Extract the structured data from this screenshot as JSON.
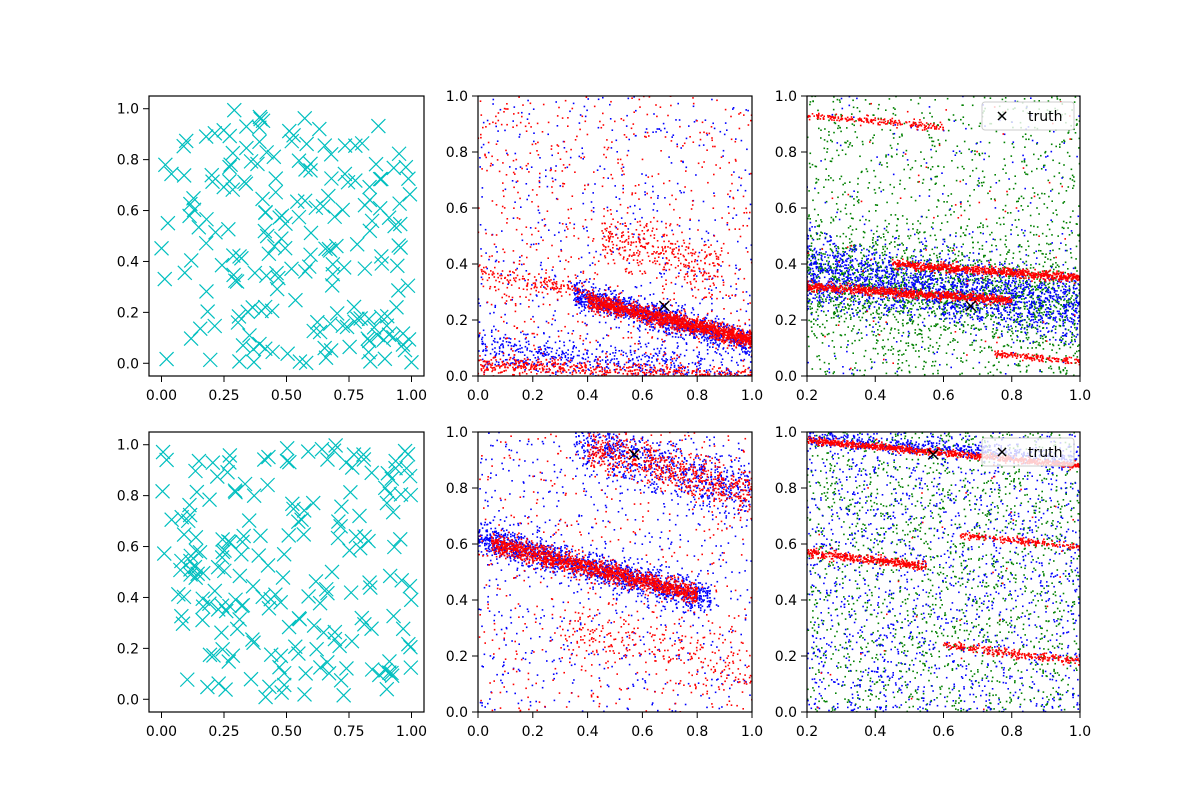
{
  "chart_data": [
    {
      "id": "top-left",
      "type": "scatter",
      "xlim": [
        -0.05,
        1.05
      ],
      "ylim": [
        -0.05,
        1.05
      ],
      "xticks": [
        "0.00",
        "0.25",
        "0.50",
        "0.75",
        "1.00"
      ],
      "yticks": [
        "0.0",
        "0.2",
        "0.4",
        "0.6",
        "0.8",
        "1.0"
      ],
      "grid": false,
      "series": [
        {
          "marker": "x-large",
          "color": "#00bfbf",
          "count": 200,
          "distribution": "uniform over [0,1]x[0,1]"
        }
      ]
    },
    {
      "id": "top-middle",
      "type": "scatter",
      "xlim": [
        0,
        1
      ],
      "ylim": [
        0,
        1
      ],
      "xticks": [
        "0.0",
        "0.2",
        "0.4",
        "0.6",
        "0.8",
        "1.0"
      ],
      "yticks": [
        "0.0",
        "0.2",
        "0.4",
        "0.6",
        "0.8",
        "1.0"
      ],
      "grid": false,
      "truth": {
        "x": 0.68,
        "y": 0.25,
        "color": "#000000",
        "marker": "x"
      },
      "series": [
        {
          "color": "#0000ff",
          "bands": [
            {
              "x": [
                0.35,
                1.0
              ],
              "y": [
                0.29,
                0.12
              ],
              "spread": 0.025,
              "count": 1200
            },
            {
              "x": [
                0.0,
                1.0
              ],
              "y": [
                0.1,
                0.0
              ],
              "spread": 0.04,
              "count": 600
            }
          ],
          "background": 500
        },
        {
          "color": "#ff0000",
          "bands": [
            {
              "x": [
                0.4,
                1.0
              ],
              "y": [
                0.27,
                0.13
              ],
              "spread": 0.015,
              "count": 1500
            },
            {
              "x": [
                0.0,
                1.0
              ],
              "y": [
                0.04,
                0.0
              ],
              "spread": 0.015,
              "count": 500
            },
            {
              "x": [
                0.45,
                0.9
              ],
              "y": [
                0.5,
                0.38
              ],
              "spread": 0.04,
              "count": 300
            },
            {
              "x": [
                0.0,
                0.4
              ],
              "y": [
                0.37,
                0.3
              ],
              "spread": 0.02,
              "count": 150
            }
          ],
          "background": 700
        }
      ]
    },
    {
      "id": "top-right",
      "type": "scatter",
      "xlim": [
        0.2,
        1.0
      ],
      "ylim": [
        0,
        1
      ],
      "xticks": [
        "0.2",
        "0.4",
        "0.6",
        "0.8",
        "1.0"
      ],
      "yticks": [
        "0.0",
        "0.2",
        "0.4",
        "0.6",
        "0.8",
        "1.0"
      ],
      "grid": false,
      "legend": {
        "label": "truth",
        "location": "upper right"
      },
      "truth": {
        "x": 0.68,
        "y": 0.25,
        "color": "#000000",
        "marker": "x"
      },
      "series": [
        {
          "color": "#008000",
          "bands": [
            {
              "x": [
                0.2,
                1.0
              ],
              "y": [
                0.35,
                0.25
              ],
              "spread": 0.1,
              "count": 1500
            }
          ],
          "background": 1200
        },
        {
          "color": "#0000ff",
          "bands": [
            {
              "x": [
                0.2,
                1.0
              ],
              "y": [
                0.38,
                0.25
              ],
              "spread": 0.06,
              "count": 1800
            }
          ],
          "background": 250
        },
        {
          "color": "#ff0000",
          "bands": [
            {
              "x": [
                0.2,
                0.8
              ],
              "y": [
                0.32,
                0.27
              ],
              "spread": 0.008,
              "count": 900
            },
            {
              "x": [
                0.45,
                1.0
              ],
              "y": [
                0.4,
                0.35
              ],
              "spread": 0.008,
              "count": 800
            },
            {
              "x": [
                0.2,
                0.6
              ],
              "y": [
                0.93,
                0.89
              ],
              "spread": 0.006,
              "count": 200
            },
            {
              "x": [
                0.75,
                1.0
              ],
              "y": [
                0.08,
                0.05
              ],
              "spread": 0.006,
              "count": 150
            }
          ],
          "background": 80
        }
      ]
    },
    {
      "id": "bottom-left",
      "type": "scatter",
      "xlim": [
        -0.05,
        1.05
      ],
      "ylim": [
        -0.05,
        1.05
      ],
      "xticks": [
        "0.00",
        "0.25",
        "0.50",
        "0.75",
        "1.00"
      ],
      "yticks": [
        "0.0",
        "0.2",
        "0.4",
        "0.6",
        "0.8",
        "1.0"
      ],
      "grid": false,
      "series": [
        {
          "marker": "x-large",
          "color": "#00bfbf",
          "count": 200,
          "distribution": "uniform over [0,1]x[0,1]"
        }
      ]
    },
    {
      "id": "bottom-middle",
      "type": "scatter",
      "xlim": [
        0,
        1
      ],
      "ylim": [
        0,
        1
      ],
      "xticks": [
        "0.0",
        "0.2",
        "0.4",
        "0.6",
        "0.8",
        "1.0"
      ],
      "yticks": [
        "0.0",
        "0.2",
        "0.4",
        "0.6",
        "0.8",
        "1.0"
      ],
      "grid": false,
      "truth": {
        "x": 0.57,
        "y": 0.92,
        "color": "#000000",
        "marker": "x"
      },
      "series": [
        {
          "color": "#0000ff",
          "bands": [
            {
              "x": [
                0.0,
                0.85
              ],
              "y": [
                0.62,
                0.4
              ],
              "spread": 0.03,
              "count": 1400
            },
            {
              "x": [
                0.35,
                1.0
              ],
              "y": [
                0.97,
                0.78
              ],
              "spread": 0.05,
              "count": 700
            }
          ],
          "background": 650
        },
        {
          "color": "#ff0000",
          "bands": [
            {
              "x": [
                0.05,
                0.8
              ],
              "y": [
                0.6,
                0.42
              ],
              "spread": 0.018,
              "count": 1500
            },
            {
              "x": [
                0.4,
                1.0
              ],
              "y": [
                0.95,
                0.78
              ],
              "spread": 0.04,
              "count": 600
            },
            {
              "x": [
                0.3,
                1.0
              ],
              "y": [
                0.3,
                0.15
              ],
              "spread": 0.06,
              "count": 250
            }
          ],
          "background": 500
        }
      ]
    },
    {
      "id": "bottom-right",
      "type": "scatter",
      "xlim": [
        0.2,
        1.0
      ],
      "ylim": [
        0,
        1
      ],
      "xticks": [
        "0.2",
        "0.4",
        "0.6",
        "0.8",
        "1.0"
      ],
      "yticks": [
        "0.0",
        "0.2",
        "0.4",
        "0.6",
        "0.8",
        "1.0"
      ],
      "grid": false,
      "legend": {
        "label": "truth",
        "location": "upper right"
      },
      "truth": {
        "x": 0.57,
        "y": 0.92,
        "color": "#000000",
        "marker": "x"
      },
      "series": [
        {
          "color": "#008000",
          "bands": [],
          "background": 1700
        },
        {
          "color": "#0000ff",
          "bands": [
            {
              "x": [
                0.2,
                1.0
              ],
              "y": [
                0.98,
                0.9
              ],
              "spread": 0.015,
              "count": 500
            }
          ],
          "background": 1500
        },
        {
          "color": "#ff0000",
          "bands": [
            {
              "x": [
                0.2,
                1.0
              ],
              "y": [
                0.97,
                0.88
              ],
              "spread": 0.006,
              "count": 900
            },
            {
              "x": [
                0.2,
                0.55
              ],
              "y": [
                0.57,
                0.52
              ],
              "spread": 0.008,
              "count": 400
            },
            {
              "x": [
                0.65,
                1.0
              ],
              "y": [
                0.63,
                0.59
              ],
              "spread": 0.006,
              "count": 200
            },
            {
              "x": [
                0.6,
                1.0
              ],
              "y": [
                0.24,
                0.18
              ],
              "spread": 0.008,
              "count": 250
            }
          ],
          "background": 40
        }
      ]
    }
  ]
}
